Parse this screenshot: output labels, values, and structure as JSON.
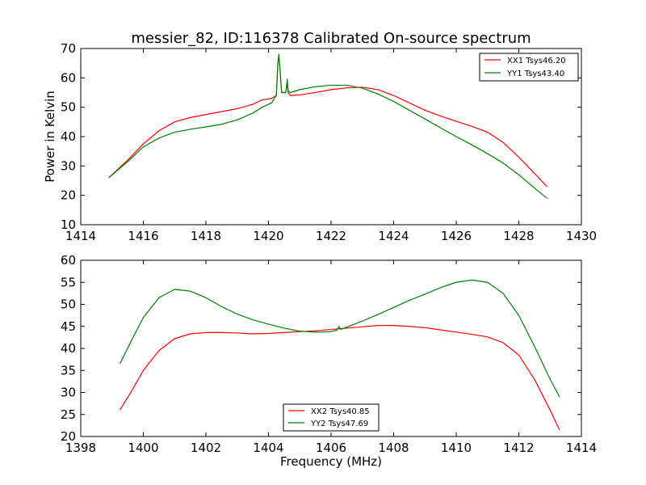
{
  "chart_data": [
    {
      "type": "line",
      "title": "messier_82, ID:116378 Calibrated On-source spectrum",
      "xlabel": "",
      "ylabel": "Power in Kelvin",
      "xlim": [
        1414,
        1430
      ],
      "ylim": [
        10,
        70
      ],
      "xticks": [
        "1414",
        "1416",
        "1418",
        "1420",
        "1422",
        "1424",
        "1426",
        "1428",
        "1430"
      ],
      "yticks": [
        "10",
        "20",
        "30",
        "40",
        "50",
        "60",
        "70"
      ],
      "grid": false,
      "legend_position": "top-right",
      "series": [
        {
          "name": "XX1 Tsys46.20",
          "color": "#ff0000",
          "points": [
            [
              1414.9,
              26
            ],
            [
              1415.5,
              32
            ],
            [
              1416,
              37.5
            ],
            [
              1416.5,
              42
            ],
            [
              1417,
              45
            ],
            [
              1417.5,
              46.5
            ],
            [
              1418,
              47.5
            ],
            [
              1418.5,
              48.5
            ],
            [
              1419,
              49.5
            ],
            [
              1419.5,
              51
            ],
            [
              1419.8,
              52.5
            ],
            [
              1420.1,
              53
            ],
            [
              1420.25,
              54
            ],
            [
              1420.3,
              65
            ],
            [
              1420.33,
              67.5
            ],
            [
              1420.36,
              64
            ],
            [
              1420.42,
              55
            ],
            [
              1420.55,
              55
            ],
            [
              1420.6,
              58
            ],
            [
              1420.63,
              55
            ],
            [
              1420.7,
              54
            ],
            [
              1421,
              54.2
            ],
            [
              1421.5,
              55
            ],
            [
              1422,
              56
            ],
            [
              1422.5,
              56.6
            ],
            [
              1423,
              56.8
            ],
            [
              1423.5,
              56
            ],
            [
              1424,
              54
            ],
            [
              1424.5,
              51.5
            ],
            [
              1425,
              49
            ],
            [
              1425.5,
              47
            ],
            [
              1426,
              45.2
            ],
            [
              1426.5,
              43.5
            ],
            [
              1427,
              41.5
            ],
            [
              1427.5,
              38
            ],
            [
              1428,
              33
            ],
            [
              1428.5,
              27.5
            ],
            [
              1428.9,
              23
            ]
          ]
        },
        {
          "name": "YY1 Tsys43.40",
          "color": "#008000",
          "points": [
            [
              1414.9,
              26
            ],
            [
              1415.5,
              31.5
            ],
            [
              1416,
              36.5
            ],
            [
              1416.5,
              39.5
            ],
            [
              1417,
              41.5
            ],
            [
              1417.5,
              42.5
            ],
            [
              1418,
              43.3
            ],
            [
              1418.5,
              44.2
            ],
            [
              1419,
              45.7
            ],
            [
              1419.5,
              48
            ],
            [
              1419.8,
              50
            ],
            [
              1420.1,
              51.5
            ],
            [
              1420.25,
              54
            ],
            [
              1420.3,
              65
            ],
            [
              1420.33,
              68
            ],
            [
              1420.36,
              64
            ],
            [
              1420.42,
              55
            ],
            [
              1420.55,
              55
            ],
            [
              1420.6,
              59.5
            ],
            [
              1420.63,
              55.5
            ],
            [
              1420.7,
              55
            ],
            [
              1421,
              56
            ],
            [
              1421.5,
              57
            ],
            [
              1422,
              57.5
            ],
            [
              1422.5,
              57.5
            ],
            [
              1423,
              56.5
            ],
            [
              1423.5,
              54.5
            ],
            [
              1424,
              52
            ],
            [
              1424.5,
              49
            ],
            [
              1425,
              46
            ],
            [
              1425.5,
              43
            ],
            [
              1426,
              40
            ],
            [
              1426.5,
              37.2
            ],
            [
              1427,
              34.2
            ],
            [
              1427.5,
              31
            ],
            [
              1428,
              27
            ],
            [
              1428.5,
              22.5
            ],
            [
              1428.9,
              19
            ]
          ]
        }
      ]
    },
    {
      "type": "line",
      "title": "",
      "xlabel": "Frequency (MHz)",
      "ylabel": "",
      "xlim": [
        1398,
        1414
      ],
      "ylim": [
        20,
        60
      ],
      "xticks": [
        "1398",
        "1400",
        "1402",
        "1404",
        "1406",
        "1408",
        "1410",
        "1412",
        "1414"
      ],
      "yticks": [
        "20",
        "25",
        "30",
        "35",
        "40",
        "45",
        "50",
        "55",
        "60"
      ],
      "grid": false,
      "legend_position": "bottom-center",
      "series": [
        {
          "name": "XX2 Tsys40.85",
          "color": "#ff0000",
          "points": [
            [
              1399.25,
              26
            ],
            [
              1399.6,
              30
            ],
            [
              1400,
              35
            ],
            [
              1400.5,
              39.5
            ],
            [
              1401,
              42.2
            ],
            [
              1401.5,
              43.3
            ],
            [
              1402,
              43.6
            ],
            [
              1402.5,
              43.6
            ],
            [
              1403,
              43.5
            ],
            [
              1403.5,
              43.3
            ],
            [
              1404,
              43.4
            ],
            [
              1404.5,
              43.6
            ],
            [
              1405,
              43.8
            ],
            [
              1405.5,
              44
            ],
            [
              1406,
              44.3
            ],
            [
              1406.5,
              44.6
            ],
            [
              1407,
              44.9
            ],
            [
              1407.5,
              45.2
            ],
            [
              1408,
              45.2
            ],
            [
              1408.5,
              45
            ],
            [
              1409,
              44.7
            ],
            [
              1409.5,
              44.2
            ],
            [
              1410,
              43.7
            ],
            [
              1410.5,
              43.2
            ],
            [
              1411,
              42.6
            ],
            [
              1411.5,
              41.3
            ],
            [
              1412,
              38.5
            ],
            [
              1412.5,
              33
            ],
            [
              1413,
              26
            ],
            [
              1413.3,
              21.5
            ]
          ]
        },
        {
          "name": "YY2 Tsys47.69",
          "color": "#008000",
          "points": [
            [
              1399.25,
              36.5
            ],
            [
              1399.6,
              41.5
            ],
            [
              1400,
              47
            ],
            [
              1400.5,
              51.5
            ],
            [
              1401,
              53.4
            ],
            [
              1401.5,
              53
            ],
            [
              1402,
              51.5
            ],
            [
              1402.5,
              49.5
            ],
            [
              1403,
              47.8
            ],
            [
              1403.5,
              46.5
            ],
            [
              1404,
              45.5
            ],
            [
              1404.5,
              44.6
            ],
            [
              1405,
              43.9
            ],
            [
              1405.5,
              43.7
            ],
            [
              1406,
              43.8
            ],
            [
              1406.2,
              44.2
            ],
            [
              1406.25,
              45
            ],
            [
              1406.3,
              44.3
            ],
            [
              1406.5,
              44.8
            ],
            [
              1407,
              46.2
            ],
            [
              1407.5,
              47.7
            ],
            [
              1408,
              49.3
            ],
            [
              1408.5,
              50.9
            ],
            [
              1409,
              52.3
            ],
            [
              1409.5,
              53.8
            ],
            [
              1410,
              55
            ],
            [
              1410.5,
              55.5
            ],
            [
              1411,
              55
            ],
            [
              1411.5,
              52.5
            ],
            [
              1412,
              47.5
            ],
            [
              1412.5,
              40.5
            ],
            [
              1413,
              33
            ],
            [
              1413.3,
              29
            ]
          ]
        }
      ]
    }
  ]
}
